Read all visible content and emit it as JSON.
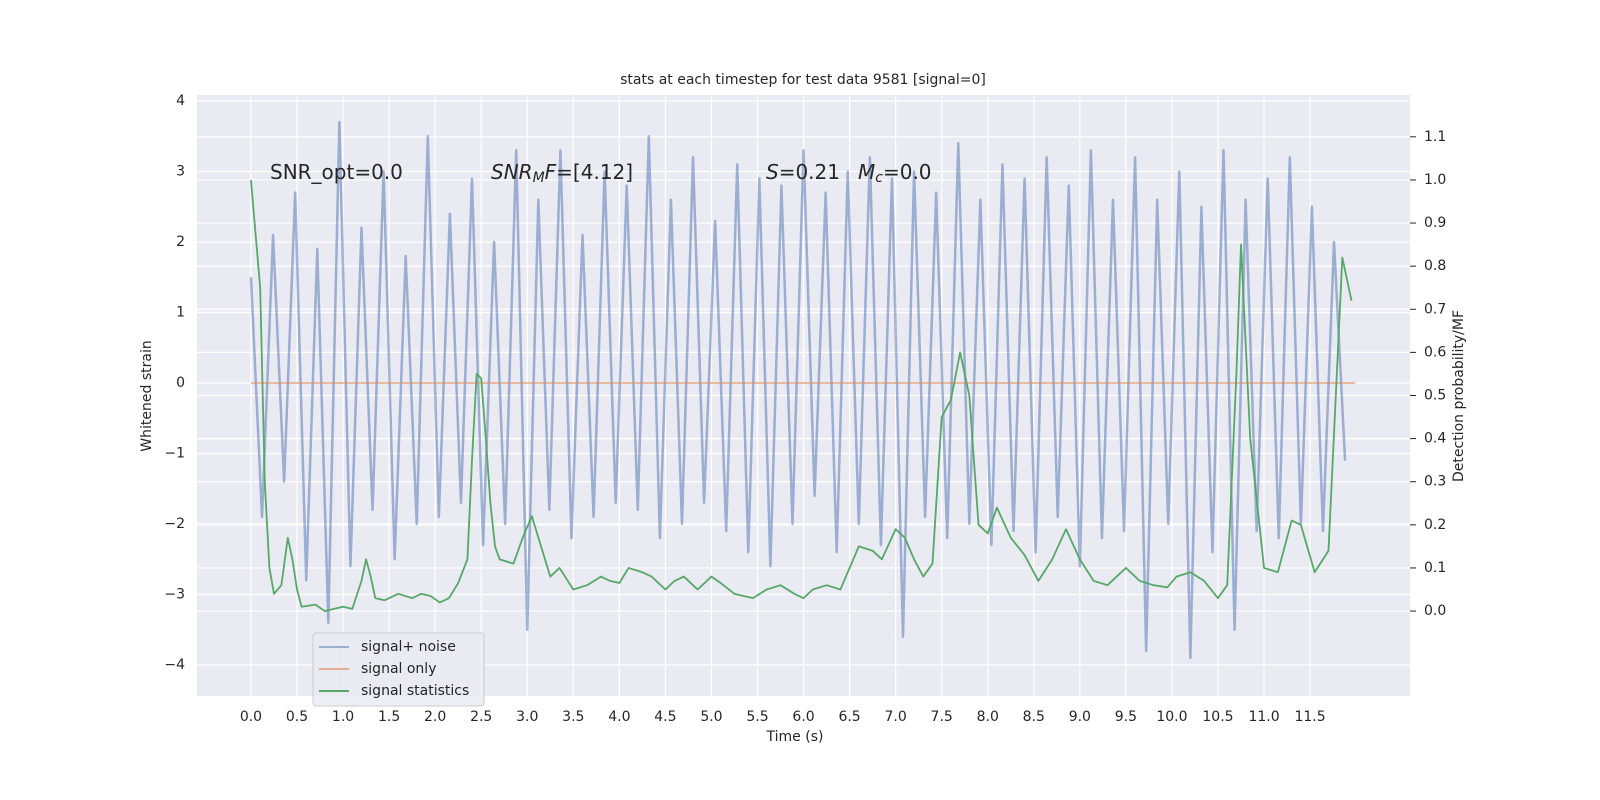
{
  "chart_data": {
    "type": "line",
    "title": "stats at each timestep for test data 9581 [signal=0]",
    "xlabel": "Time (s)",
    "ylabel": "Whitened strain",
    "y2label": "Detection probability/MF",
    "annotations": [
      [
        {
          "text": "SNR_opt=0.0",
          "italic": false,
          "sub": false
        }
      ],
      [
        {
          "text": "SNR",
          "italic": true,
          "sub": false
        },
        {
          "text": "M",
          "italic": true,
          "sub": true
        },
        {
          "text": "F",
          "italic": true,
          "sub": false
        },
        {
          "text": "=[4.12]",
          "italic": false,
          "sub": false
        }
      ],
      [
        {
          "text": "S",
          "italic": true,
          "sub": false
        },
        {
          "text": "=0.21",
          "italic": false,
          "sub": false
        }
      ],
      [
        {
          "text": "M",
          "italic": true,
          "sub": false
        },
        {
          "text": "c",
          "italic": true,
          "sub": true
        },
        {
          "text": "=0.0",
          "italic": false,
          "sub": false
        }
      ]
    ],
    "xlim": [
      -0.586,
      12.585
    ],
    "ylim": [
      -4.44,
      4.085
    ],
    "y2lim": [
      -0.197,
      1.197
    ],
    "xticks": [
      {
        "value": 0,
        "label": "0.0"
      },
      {
        "value": 0.5,
        "label": "0.5"
      },
      {
        "value": 1,
        "label": "1.0"
      },
      {
        "value": 1.5,
        "label": "1.5"
      },
      {
        "value": 2,
        "label": "2.0"
      },
      {
        "value": 2.5,
        "label": "2.5"
      },
      {
        "value": 3,
        "label": "3.0"
      },
      {
        "value": 3.5,
        "label": "3.5"
      },
      {
        "value": 4,
        "label": "4.0"
      },
      {
        "value": 4.5,
        "label": "4.5"
      },
      {
        "value": 5,
        "label": "5.0"
      },
      {
        "value": 5.5,
        "label": "5.5"
      },
      {
        "value": 6,
        "label": "6.0"
      },
      {
        "value": 6.5,
        "label": "6.5"
      },
      {
        "value": 7,
        "label": "7.0"
      },
      {
        "value": 7.5,
        "label": "7.5"
      },
      {
        "value": 8,
        "label": "8.0"
      },
      {
        "value": 8.5,
        "label": "8.5"
      },
      {
        "value": 9,
        "label": "9.0"
      },
      {
        "value": 9.5,
        "label": "9.5"
      },
      {
        "value": 10,
        "label": "10.0"
      },
      {
        "value": 10.5,
        "label": "10.5"
      },
      {
        "value": 11,
        "label": "11.0"
      },
      {
        "value": 11.5,
        "label": "11.5"
      }
    ],
    "yticks": [
      {
        "value": -4,
        "label": "−4"
      },
      {
        "value": -3,
        "label": "−3"
      },
      {
        "value": -2,
        "label": "−2"
      },
      {
        "value": -1,
        "label": "−1"
      },
      0,
      1,
      2,
      3,
      4
    ],
    "y2ticks": [
      {
        "value": 0,
        "label": "0.0"
      },
      0.1,
      0.2,
      0.3,
      0.4,
      0.5,
      0.6,
      0.7,
      0.8,
      0.9,
      {
        "value": 1,
        "label": "1.0"
      },
      1.1
    ],
    "grid": true,
    "legend": "lower left",
    "background": "#eaeaf2",
    "series": [
      {
        "name": "signal+ noise",
        "color": "#4c72b0",
        "opacity": 0.5,
        "axis": "y",
        "x": [
          0,
          0.12,
          0.24,
          0.36,
          0.48,
          0.6,
          0.72,
          0.84,
          0.96,
          1.08,
          1.2,
          1.32,
          1.44,
          1.56,
          1.68,
          1.8,
          1.92,
          2.04,
          2.16,
          2.28,
          2.4,
          2.52,
          2.64,
          2.76,
          2.88,
          3,
          3.12,
          3.24,
          3.36,
          3.48,
          3.6,
          3.72,
          3.84,
          3.96,
          4.08,
          4.2,
          4.32,
          4.44,
          4.56,
          4.68,
          4.8,
          4.92,
          5.04,
          5.16,
          5.28,
          5.4,
          5.52,
          5.64,
          5.76,
          5.88,
          6,
          6.12,
          6.24,
          6.36,
          6.48,
          6.6,
          6.72,
          6.84,
          6.96,
          7.08,
          7.2,
          7.32,
          7.44,
          7.56,
          7.68,
          7.8,
          7.92,
          8.04,
          8.16,
          8.28,
          8.4,
          8.52,
          8.64,
          8.76,
          8.88,
          9,
          9.12,
          9.24,
          9.36,
          9.48,
          9.6,
          9.72,
          9.84,
          9.96,
          10.08,
          10.2,
          10.32,
          10.44,
          10.56,
          10.68,
          10.8,
          10.92,
          11.04,
          11.16,
          11.28,
          11.4,
          11.52,
          11.64,
          11.76,
          11.88
        ],
        "values": [
          1.5,
          -1.9,
          2.1,
          -1.4,
          2.7,
          -2.8,
          1.9,
          -3.4,
          3.7,
          -2.6,
          2.2,
          -1.8,
          3.0,
          -2.5,
          1.8,
          -2.0,
          3.5,
          -1.9,
          2.4,
          -1.7,
          2.9,
          -2.3,
          2.0,
          -2.0,
          3.3,
          -3.5,
          2.6,
          -1.8,
          3.3,
          -2.2,
          2.1,
          -1.9,
          3.0,
          -1.7,
          2.8,
          -1.8,
          3.5,
          -2.2,
          2.6,
          -2.0,
          3.2,
          -1.7,
          2.3,
          -2.1,
          3.1,
          -2.4,
          2.9,
          -2.6,
          2.8,
          -2.0,
          3.3,
          -1.6,
          2.7,
          -2.4,
          3.0,
          -2.0,
          3.2,
          -2.3,
          2.9,
          -3.6,
          3.0,
          -1.9,
          2.7,
          -2.2,
          3.4,
          -2.0,
          2.6,
          -2.3,
          3.1,
          -2.1,
          2.9,
          -2.4,
          3.2,
          -1.9,
          2.8,
          -2.6,
          3.3,
          -2.2,
          2.6,
          -2.1,
          3.2,
          -3.8,
          2.6,
          -2.0,
          3.0,
          -3.9,
          2.5,
          -2.4,
          3.3,
          -3.5,
          2.6,
          -2.1,
          2.9,
          -2.2,
          3.2,
          -2.0,
          2.5,
          -2.1,
          2.0,
          -1.1
        ]
      },
      {
        "name": "signal only",
        "color": "#dd8452",
        "opacity": 0.6,
        "axis": "y",
        "x": [
          0,
          11.99
        ],
        "values": [
          0,
          0
        ]
      },
      {
        "name": "signal statistics",
        "color": "#55a868",
        "opacity": 1,
        "axis": "y2",
        "x": [
          0,
          0.1,
          0.15,
          0.2,
          0.25,
          0.33,
          0.4,
          0.45,
          0.5,
          0.55,
          0.7,
          0.8,
          0.9,
          1,
          1.1,
          1.2,
          1.25,
          1.3,
          1.35,
          1.45,
          1.6,
          1.75,
          1.85,
          1.95,
          2.05,
          2.15,
          2.25,
          2.35,
          2.4,
          2.45,
          2.5,
          2.55,
          2.6,
          2.65,
          2.7,
          2.85,
          2.95,
          3.05,
          3.15,
          3.25,
          3.35,
          3.5,
          3.65,
          3.8,
          3.9,
          4,
          4.1,
          4.25,
          4.35,
          4.5,
          4.6,
          4.7,
          4.85,
          5,
          5.1,
          5.25,
          5.45,
          5.6,
          5.75,
          5.9,
          6,
          6.1,
          6.25,
          6.4,
          6.5,
          6.6,
          6.75,
          6.85,
          7,
          7.1,
          7.2,
          7.3,
          7.4,
          7.5,
          7.6,
          7.7,
          7.8,
          7.9,
          8,
          8.1,
          8.25,
          8.4,
          8.55,
          8.7,
          8.85,
          9,
          9.15,
          9.3,
          9.5,
          9.65,
          9.8,
          9.95,
          10.05,
          10.2,
          10.35,
          10.5,
          10.6,
          10.7,
          10.75,
          10.85,
          11,
          11.15,
          11.3,
          11.4,
          11.55,
          11.7,
          11.85,
          11.95
        ],
        "values": [
          1.0,
          0.75,
          0.3,
          0.1,
          0.04,
          0.06,
          0.17,
          0.12,
          0.05,
          0.01,
          0.015,
          0.0,
          0.005,
          0.01,
          0.005,
          0.07,
          0.12,
          0.08,
          0.03,
          0.025,
          0.04,
          0.03,
          0.04,
          0.035,
          0.02,
          0.03,
          0.065,
          0.12,
          0.35,
          0.55,
          0.54,
          0.4,
          0.25,
          0.15,
          0.12,
          0.11,
          0.17,
          0.22,
          0.15,
          0.08,
          0.1,
          0.05,
          0.06,
          0.08,
          0.07,
          0.065,
          0.1,
          0.09,
          0.08,
          0.05,
          0.07,
          0.08,
          0.05,
          0.08,
          0.065,
          0.04,
          0.03,
          0.05,
          0.06,
          0.04,
          0.03,
          0.05,
          0.06,
          0.05,
          0.1,
          0.15,
          0.14,
          0.12,
          0.19,
          0.17,
          0.12,
          0.08,
          0.11,
          0.45,
          0.49,
          0.6,
          0.5,
          0.2,
          0.18,
          0.24,
          0.17,
          0.13,
          0.07,
          0.12,
          0.19,
          0.12,
          0.07,
          0.06,
          0.1,
          0.07,
          0.06,
          0.055,
          0.08,
          0.09,
          0.07,
          0.03,
          0.06,
          0.55,
          0.85,
          0.4,
          0.1,
          0.09,
          0.21,
          0.2,
          0.09,
          0.14,
          0.82,
          0.72
        ]
      }
    ]
  }
}
